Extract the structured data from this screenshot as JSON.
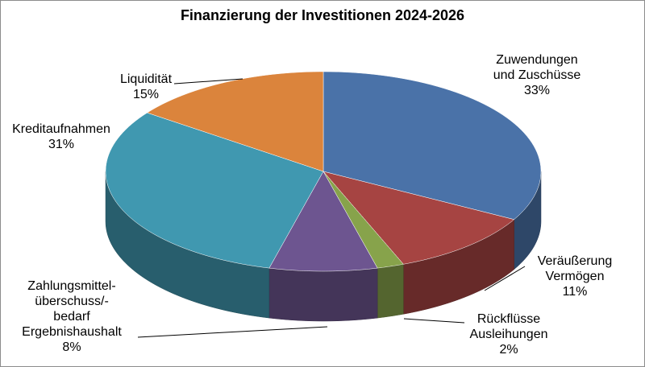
{
  "chart_data": {
    "type": "pie3d",
    "title": "Finanzierung der Investitionen 2024-2026",
    "categories": [
      "Zuwendungen\nund Zuschüsse",
      "Veräußerung\nVermögen",
      "Rückflüsse\nAusleihungen",
      "Zahlungsmittel-\nüberschuss/-\nbedarf\nErgebnishaushalt",
      "Kreditaufnahmen",
      "Liquidität"
    ],
    "values": [
      33,
      11,
      2,
      8,
      31,
      15
    ],
    "value_labels": [
      "33%",
      "11%",
      "2%",
      "8%",
      "31%",
      "15%"
    ],
    "colors": [
      "#4a72a8",
      "#a64442",
      "#87a34b",
      "#6d5590",
      "#4098b0",
      "#db843c"
    ]
  }
}
